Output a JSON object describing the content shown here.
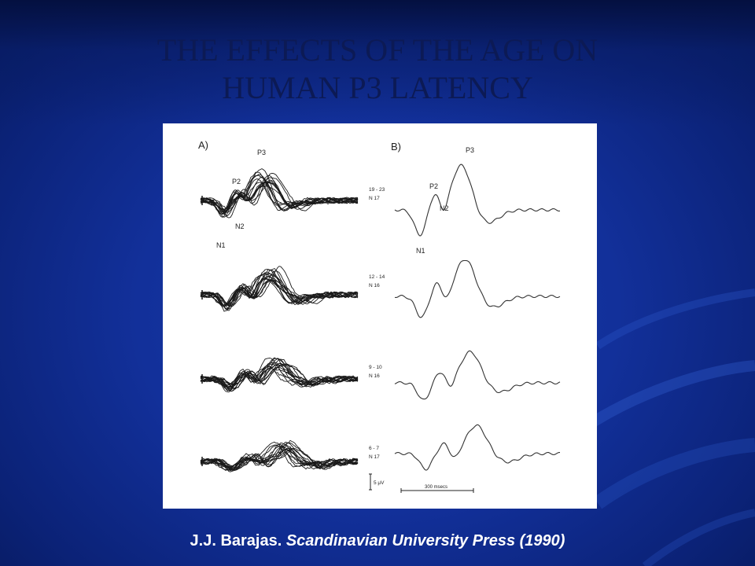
{
  "slide": {
    "title_line1": "THE EFFECTS OF THE AGE ON",
    "title_line2": "HUMAN P3 LATENCY"
  },
  "figure": {
    "panel_a_label": "A)",
    "panel_b_label": "B)",
    "peak_labels": {
      "p3": "P3",
      "p2": "P2",
      "n2": "N2",
      "n1": "N1"
    },
    "groups": [
      {
        "age": "19 - 23",
        "n": "N 17"
      },
      {
        "age": "12 - 14",
        "n": "N 16"
      },
      {
        "age": "9 - 10",
        "n": "N 16"
      },
      {
        "age": "6 - 7",
        "n": "N 17"
      }
    ],
    "amplitude_scale": "5 μV",
    "time_scale": "300 msecs"
  },
  "caption": {
    "author": "J.J. Barajas.",
    "source": "Scandinavian University Press (1990)"
  }
}
